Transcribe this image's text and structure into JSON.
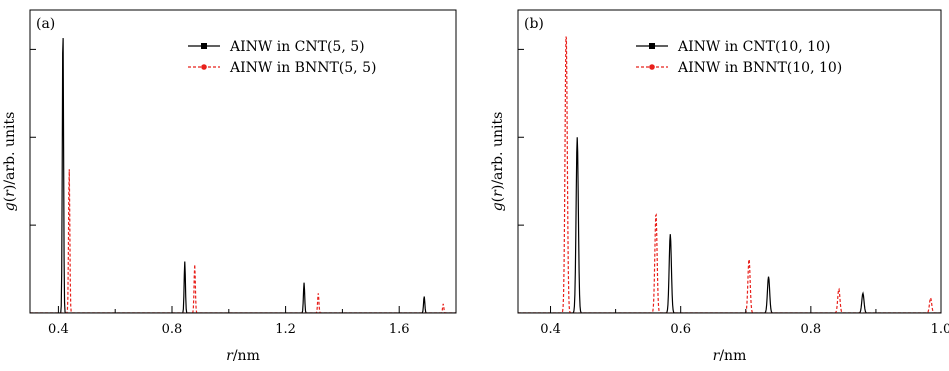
{
  "chart_data": [
    {
      "type": "line",
      "panel_label": "(a)",
      "xlabel": "r/nm",
      "ylabel": "g(r)/arb. units",
      "xlim": [
        0.3,
        1.8
      ],
      "ylim": [
        0,
        1.0
      ],
      "x_ticks": [
        0.4,
        0.8,
        1.2,
        1.6
      ],
      "x_tick_labels": [
        "0.4",
        "0.8",
        "1.2",
        "1.6"
      ],
      "y_tick_labels_shown": false,
      "grid": false,
      "legend_position": "top-right",
      "series": [
        {
          "name": "AINW in CNT(5, 5)",
          "color": "#000000",
          "line_style": "solid",
          "marker": "square",
          "peaks": [
            [
              0.416,
              0.95
            ],
            [
              0.845,
              0.17
            ],
            [
              1.265,
              0.1
            ],
            [
              1.688,
              0.055
            ]
          ]
        },
        {
          "name": "AINW in BNNT(5, 5)",
          "color": "#e8201b",
          "line_style": "dashed",
          "marker": "circle",
          "peaks": [
            [
              0.438,
              0.48
            ],
            [
              0.88,
              0.16
            ],
            [
              1.315,
              0.065
            ],
            [
              1.755,
              0.03
            ]
          ]
        }
      ]
    },
    {
      "type": "line",
      "panel_label": "(b)",
      "xlabel": "r/nm",
      "ylabel": "g(r)/arb. units",
      "xlim": [
        0.35,
        1.0
      ],
      "ylim": [
        0,
        1.0
      ],
      "x_ticks": [
        0.4,
        0.6,
        0.8,
        1.0
      ],
      "x_tick_labels": [
        "0.4",
        "0.6",
        "0.8",
        "1.0"
      ],
      "y_tick_labels_shown": false,
      "grid": false,
      "legend_position": "top-right",
      "series": [
        {
          "name": "AINW in CNT(10, 10)",
          "color": "#000000",
          "line_style": "solid",
          "marker": "square",
          "peaks": [
            [
              0.441,
              0.58
            ],
            [
              0.584,
              0.26
            ],
            [
              0.735,
              0.12
            ],
            [
              0.88,
              0.065
            ]
          ]
        },
        {
          "name": "AINW in BNNT(10, 10)",
          "color": "#e8201b",
          "line_style": "dashed",
          "marker": "circle",
          "peaks": [
            [
              0.424,
              0.93
            ],
            [
              0.562,
              0.33
            ],
            [
              0.705,
              0.18
            ],
            [
              0.843,
              0.08
            ],
            [
              0.984,
              0.05
            ]
          ]
        }
      ]
    }
  ]
}
